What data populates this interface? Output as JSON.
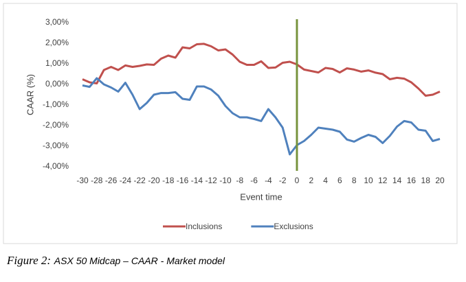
{
  "chart_data": {
    "type": "line",
    "x_label": "Event time",
    "y_label": "CAAR (%)",
    "caption_label": "Figure 2:",
    "caption": "ASX 50 Midcap – CAAR - Market model",
    "x": [
      -30,
      -29,
      -28,
      -27,
      -26,
      -25,
      -24,
      -23,
      -22,
      -21,
      -20,
      -19,
      -18,
      -17,
      -16,
      -15,
      -14,
      -13,
      -12,
      -11,
      -10,
      -9,
      -8,
      -7,
      -6,
      -5,
      -4,
      -3,
      -2,
      -1,
      0,
      1,
      2,
      3,
      4,
      5,
      6,
      7,
      8,
      9,
      10,
      11,
      12,
      13,
      14,
      15,
      16,
      17,
      18,
      19,
      20
    ],
    "series": [
      {
        "name": "Inclusions",
        "color": "#c0504d",
        "values": [
          0.25,
          0.1,
          0.05,
          0.7,
          0.85,
          0.7,
          0.92,
          0.85,
          0.9,
          0.97,
          0.95,
          1.25,
          1.4,
          1.3,
          1.8,
          1.75,
          1.95,
          1.97,
          1.85,
          1.65,
          1.7,
          1.45,
          1.1,
          0.95,
          0.95,
          1.12,
          0.8,
          0.82,
          1.05,
          1.1,
          0.97,
          0.72,
          0.65,
          0.58,
          0.8,
          0.75,
          0.58,
          0.78,
          0.72,
          0.62,
          0.68,
          0.57,
          0.5,
          0.25,
          0.32,
          0.28,
          0.1,
          -0.2,
          -0.55,
          -0.5,
          -0.35
        ]
      },
      {
        "name": "Exclusions",
        "color": "#4f81bd",
        "values": [
          -0.05,
          -0.12,
          0.3,
          0.0,
          -0.15,
          -0.35,
          0.08,
          -0.5,
          -1.2,
          -0.9,
          -0.5,
          -0.42,
          -0.42,
          -0.38,
          -0.7,
          -0.75,
          -0.1,
          -0.1,
          -0.25,
          -0.55,
          -1.05,
          -1.4,
          -1.6,
          -1.6,
          -1.68,
          -1.78,
          -1.2,
          -1.6,
          -2.1,
          -3.4,
          -2.95,
          -2.75,
          -2.45,
          -2.1,
          -2.15,
          -2.2,
          -2.3,
          -2.68,
          -2.78,
          -2.6,
          -2.45,
          -2.55,
          -2.85,
          -2.5,
          -2.05,
          -1.78,
          -1.85,
          -2.2,
          -2.25,
          -2.75,
          -2.65
        ]
      }
    ],
    "vline": 0,
    "vline_color": "#77933c",
    "xlim": [
      -30,
      20
    ],
    "xticks": [
      -30,
      -28,
      -26,
      -24,
      -22,
      -20,
      -18,
      -16,
      -14,
      -12,
      -10,
      -8,
      -6,
      -4,
      -2,
      0,
      2,
      4,
      6,
      8,
      10,
      12,
      14,
      16,
      18,
      20
    ],
    "ylim": [
      -4,
      3
    ],
    "yticks": [
      {
        "value": -4,
        "label": "-4,00%"
      },
      {
        "value": -3,
        "label": "-3,00%"
      },
      {
        "value": -2,
        "label": "-2,00%"
      },
      {
        "value": -1,
        "label": "-1,00%"
      },
      {
        "value": 0,
        "label": "0,00%"
      },
      {
        "value": 1,
        "label": "1,00%"
      },
      {
        "value": 2,
        "label": "2,00%"
      },
      {
        "value": 3,
        "label": "3,00%"
      }
    ],
    "grid": false,
    "legend": "bottom"
  }
}
